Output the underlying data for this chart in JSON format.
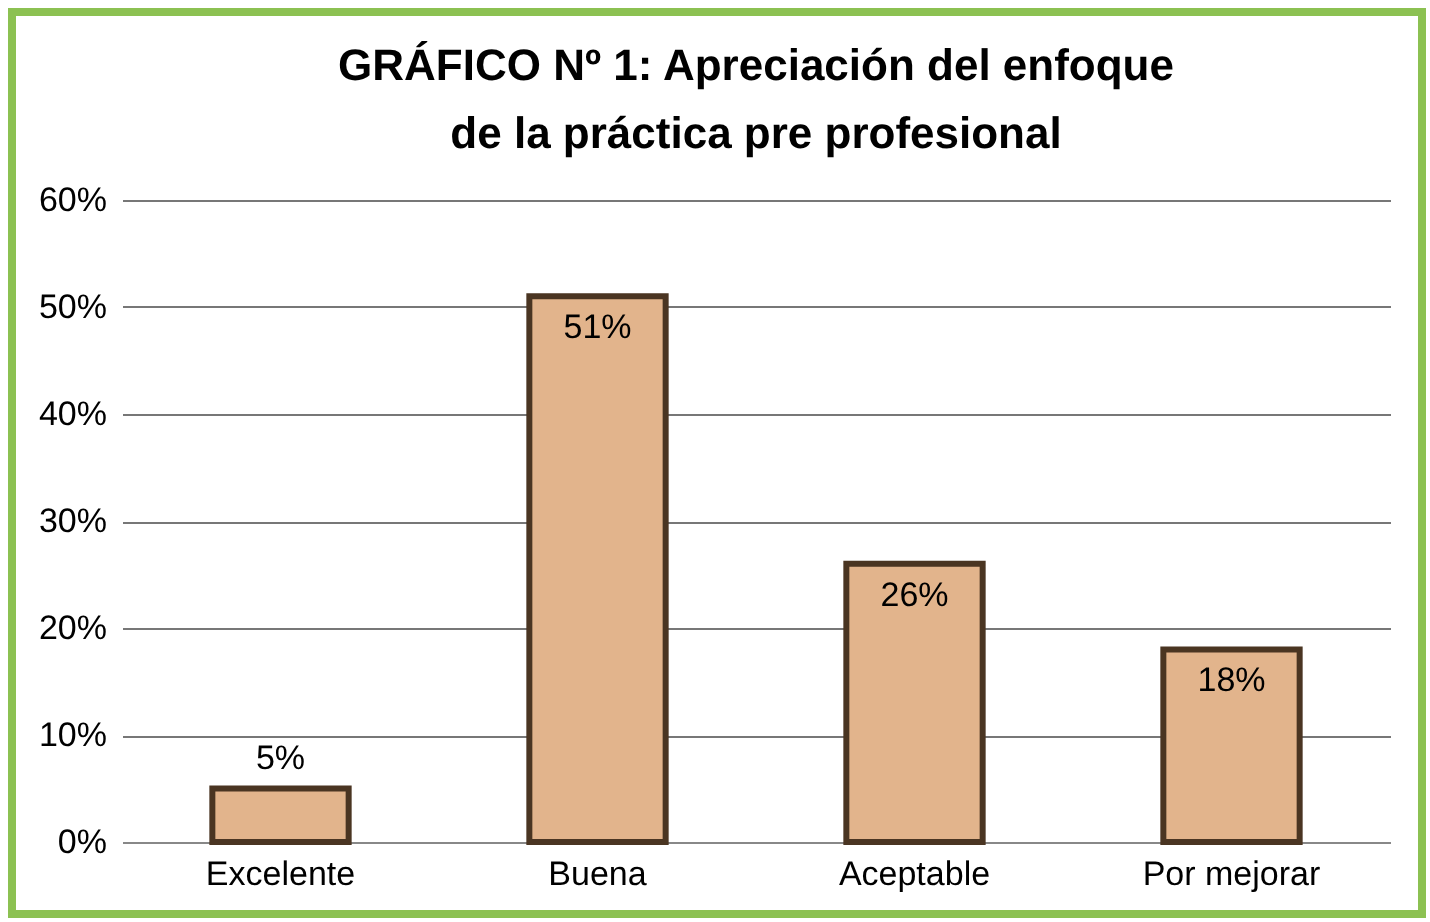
{
  "chart_data": {
    "type": "bar",
    "title": "GRÁFICO Nº 1: Apreciación del enfoque de la práctica pre profesional",
    "categories": [
      "Excelente",
      "Buena",
      "Aceptable",
      "Por mejorar"
    ],
    "values": [
      5,
      51,
      26,
      18
    ],
    "value_labels": [
      "5%",
      "51%",
      "26%",
      "18%"
    ],
    "color": "#e2b48c",
    "ylim": [
      0,
      60
    ],
    "yticks": [
      {
        "value": 0,
        "label": "0%"
      },
      {
        "value": 10,
        "label": "10%"
      },
      {
        "value": 20,
        "label": "20%"
      },
      {
        "value": 30,
        "label": "30%"
      },
      {
        "value": 40,
        "label": "40%"
      },
      {
        "value": 50,
        "label": "50%"
      },
      {
        "value": 60,
        "label": "60%"
      }
    ],
    "grid": "y"
  }
}
